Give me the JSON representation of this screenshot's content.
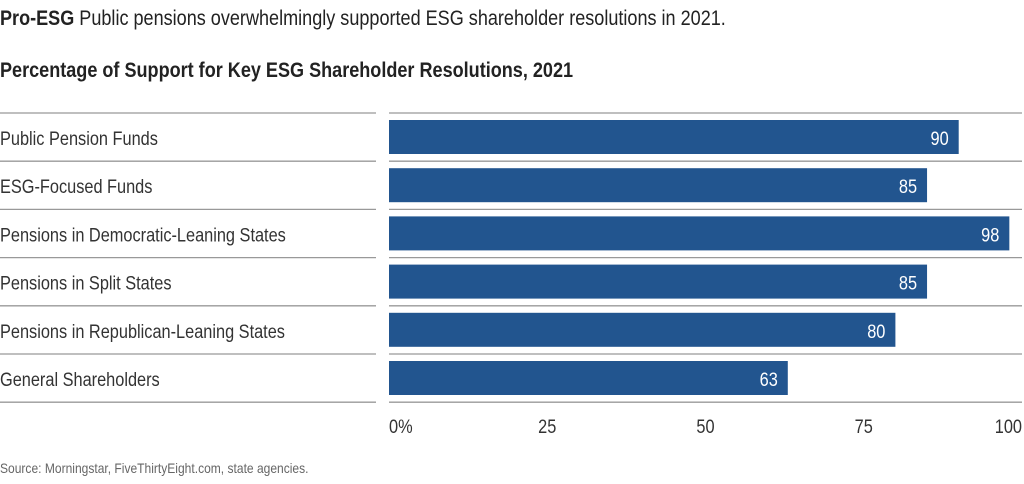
{
  "headline": {
    "lead": "Pro-ESG",
    "text": "Public pensions overwhelmingly supported ESG shareholder resolutions in 2021."
  },
  "source": "Source: Morningstar, FiveThirtyEight.com, state agencies.",
  "colors": {
    "bar": "#22558f",
    "bar_label": "#ffffff",
    "rule": "#999999"
  },
  "chart_data": {
    "type": "bar",
    "orientation": "horizontal",
    "title": "Percentage of Support for Key ESG Shareholder Resolutions, 2021",
    "categories": [
      "Public Pension Funds",
      "ESG-Focused Funds",
      "Pensions in Democratic-Leaning States",
      "Pensions in Split States",
      "Pensions in Republican-Leaning States",
      "General Shareholders"
    ],
    "values": [
      90,
      85,
      98,
      85,
      80,
      63
    ],
    "xlim": [
      0,
      100
    ],
    "xticks": [
      0,
      25,
      50,
      75,
      100
    ],
    "xtick_labels": [
      "0%",
      "25",
      "50",
      "75",
      "100"
    ],
    "grid": false,
    "data_labels": true
  }
}
